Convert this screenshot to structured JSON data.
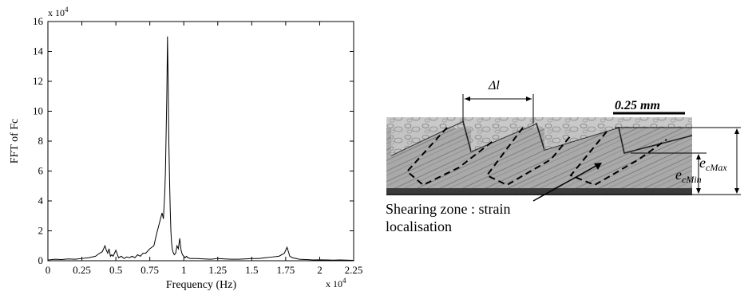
{
  "chart_data": {
    "type": "line",
    "xlabel": "Frequency (Hz)",
    "ylabel": "FFT of Fc",
    "x_multiplier": "x 10",
    "x_multiplier_exp": "4",
    "y_multiplier": "x 10",
    "y_multiplier_exp": "4",
    "xlim": [
      0,
      2.25
    ],
    "ylim": [
      0,
      16
    ],
    "xticks": [
      "0",
      "0.25",
      "0.5",
      "0.75",
      "1",
      "1.25",
      "1.5",
      "1.75",
      "2",
      "2.25"
    ],
    "yticks": [
      "0",
      "2",
      "4",
      "6",
      "8",
      "10",
      "12",
      "14",
      "16"
    ],
    "grid": false,
    "series": [
      {
        "color": "#000000",
        "x": [
          0,
          0.05,
          0.1,
          0.15,
          0.2,
          0.25,
          0.3,
          0.35,
          0.38,
          0.4,
          0.42,
          0.43,
          0.44,
          0.45,
          0.46,
          0.47,
          0.48,
          0.5,
          0.52,
          0.54,
          0.56,
          0.58,
          0.6,
          0.62,
          0.64,
          0.66,
          0.68,
          0.7,
          0.72,
          0.75,
          0.78,
          0.8,
          0.82,
          0.84,
          0.85,
          0.86,
          0.865,
          0.87,
          0.875,
          0.88,
          0.885,
          0.89,
          0.895,
          0.9,
          0.905,
          0.91,
          0.915,
          0.92,
          0.93,
          0.94,
          0.95,
          0.96,
          0.97,
          0.98,
          0.99,
          1.0,
          1.01,
          1.02,
          1.03,
          1.05,
          1.1,
          1.15,
          1.2,
          1.25,
          1.3,
          1.35,
          1.4,
          1.45,
          1.5,
          1.55,
          1.6,
          1.65,
          1.7,
          1.72,
          1.74,
          1.75,
          1.76,
          1.77,
          1.78,
          1.8,
          1.85,
          1.9,
          1.95,
          2.0,
          2.05,
          2.1,
          2.15,
          2.2,
          2.25
        ],
        "y": [
          0.05,
          0.1,
          0.08,
          0.12,
          0.1,
          0.15,
          0.2,
          0.3,
          0.5,
          0.6,
          1.0,
          0.7,
          0.5,
          0.8,
          0.3,
          0.4,
          0.3,
          0.7,
          0.2,
          0.3,
          0.15,
          0.25,
          0.2,
          0.3,
          0.2,
          0.4,
          0.3,
          0.5,
          0.5,
          0.8,
          1.0,
          1.8,
          2.5,
          3.2,
          2.8,
          4.5,
          6.0,
          8.5,
          11.0,
          15.0,
          12.0,
          8.0,
          5.5,
          3.5,
          2.0,
          1.2,
          0.8,
          0.6,
          0.4,
          0.5,
          1.0,
          0.8,
          1.5,
          0.7,
          0.4,
          0.3,
          0.2,
          0.3,
          0.2,
          0.15,
          0.15,
          0.12,
          0.1,
          0.15,
          0.12,
          0.1,
          0.1,
          0.12,
          0.15,
          0.15,
          0.2,
          0.25,
          0.3,
          0.4,
          0.5,
          0.7,
          0.9,
          0.6,
          0.3,
          0.2,
          0.1,
          0.08,
          0.05,
          0.06,
          0.05,
          0.04,
          0.05,
          0.04,
          0.03
        ]
      }
    ]
  },
  "figure_b": {
    "delta_label": "Δl",
    "scale_label": "0.25 mm",
    "ecmin_main": "e",
    "ecmin_sub": "cMin",
    "ecmax_main": "e",
    "ecmax_sub": "cMax",
    "caption_line1": "Shearing zone : strain",
    "caption_line2": "localisation"
  }
}
